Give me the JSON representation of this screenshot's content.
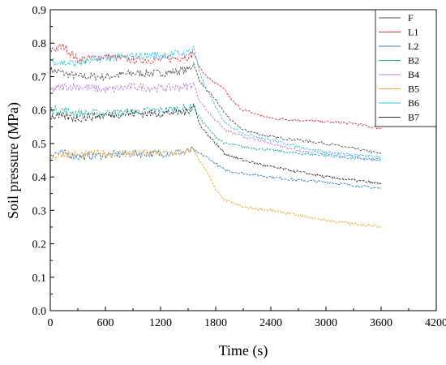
{
  "chart_data": {
    "type": "line",
    "xlabel": "Time (s)",
    "ylabel": "Soil pressure (MPa)",
    "xlim": [
      0,
      4200
    ],
    "ylim": [
      0.0,
      0.9
    ],
    "x_ticks": [
      "0",
      "600",
      "1200",
      "1800",
      "2400",
      "3000",
      "3600",
      "4200"
    ],
    "y_ticks": [
      "0.0",
      "0.1",
      "0.2",
      "0.3",
      "0.4",
      "0.5",
      "0.6",
      "0.7",
      "0.8",
      "0.9"
    ],
    "grid": false,
    "legend_position": "top-right",
    "series": [
      {
        "name": "F",
        "color": "#555555",
        "points": [
          [
            0,
            0.72
          ],
          [
            150,
            0.71
          ],
          [
            300,
            0.7
          ],
          [
            600,
            0.7
          ],
          [
            900,
            0.71
          ],
          [
            1200,
            0.71
          ],
          [
            1500,
            0.72
          ],
          [
            1560,
            0.74
          ],
          [
            1620,
            0.69
          ],
          [
            1700,
            0.66
          ],
          [
            1800,
            0.63
          ],
          [
            1900,
            0.59
          ],
          [
            2000,
            0.56
          ],
          [
            2100,
            0.54
          ],
          [
            2400,
            0.52
          ],
          [
            2700,
            0.51
          ],
          [
            3000,
            0.5
          ],
          [
            3300,
            0.485
          ],
          [
            3600,
            0.47
          ]
        ]
      },
      {
        "name": "L1",
        "color": "#e0393e",
        "points": [
          [
            0,
            0.78
          ],
          [
            150,
            0.79
          ],
          [
            300,
            0.75
          ],
          [
            600,
            0.76
          ],
          [
            900,
            0.75
          ],
          [
            1200,
            0.75
          ],
          [
            1500,
            0.76
          ],
          [
            1560,
            0.77
          ],
          [
            1620,
            0.73
          ],
          [
            1700,
            0.7
          ],
          [
            1800,
            0.68
          ],
          [
            1900,
            0.66
          ],
          [
            2000,
            0.62
          ],
          [
            2100,
            0.6
          ],
          [
            2400,
            0.575
          ],
          [
            2700,
            0.57
          ],
          [
            3000,
            0.565
          ],
          [
            3300,
            0.56
          ],
          [
            3600,
            0.545
          ]
        ]
      },
      {
        "name": "L2",
        "color": "#3a7fd4",
        "points": [
          [
            0,
            0.47
          ],
          [
            150,
            0.47
          ],
          [
            300,
            0.46
          ],
          [
            600,
            0.465
          ],
          [
            900,
            0.47
          ],
          [
            1200,
            0.47
          ],
          [
            1500,
            0.475
          ],
          [
            1560,
            0.48
          ],
          [
            1620,
            0.47
          ],
          [
            1700,
            0.46
          ],
          [
            1800,
            0.44
          ],
          [
            1900,
            0.42
          ],
          [
            2100,
            0.41
          ],
          [
            2400,
            0.4
          ],
          [
            2700,
            0.39
          ],
          [
            3000,
            0.385
          ],
          [
            3300,
            0.375
          ],
          [
            3600,
            0.365
          ]
        ]
      },
      {
        "name": "B2",
        "color": "#1ab5a5",
        "points": [
          [
            0,
            0.6
          ],
          [
            150,
            0.6
          ],
          [
            300,
            0.59
          ],
          [
            600,
            0.59
          ],
          [
            900,
            0.595
          ],
          [
            1200,
            0.6
          ],
          [
            1500,
            0.605
          ],
          [
            1560,
            0.61
          ],
          [
            1620,
            0.58
          ],
          [
            1700,
            0.55
          ],
          [
            1800,
            0.52
          ],
          [
            1900,
            0.5
          ],
          [
            2100,
            0.49
          ],
          [
            2400,
            0.48
          ],
          [
            2700,
            0.47
          ],
          [
            3000,
            0.465
          ],
          [
            3300,
            0.455
          ],
          [
            3600,
            0.45
          ]
        ]
      },
      {
        "name": "B4",
        "color": "#c77be0",
        "points": [
          [
            0,
            0.66
          ],
          [
            150,
            0.67
          ],
          [
            300,
            0.67
          ],
          [
            600,
            0.66
          ],
          [
            900,
            0.67
          ],
          [
            1200,
            0.665
          ],
          [
            1500,
            0.67
          ],
          [
            1560,
            0.68
          ],
          [
            1620,
            0.63
          ],
          [
            1700,
            0.6
          ],
          [
            1800,
            0.57
          ],
          [
            1900,
            0.54
          ],
          [
            2100,
            0.52
          ],
          [
            2400,
            0.5
          ],
          [
            2700,
            0.48
          ],
          [
            3000,
            0.47
          ],
          [
            3300,
            0.46
          ],
          [
            3600,
            0.45
          ]
        ]
      },
      {
        "name": "B5",
        "color": "#f0a830",
        "points": [
          [
            0,
            0.46
          ],
          [
            150,
            0.47
          ],
          [
            300,
            0.465
          ],
          [
            600,
            0.47
          ],
          [
            900,
            0.47
          ],
          [
            1200,
            0.47
          ],
          [
            1500,
            0.475
          ],
          [
            1560,
            0.48
          ],
          [
            1620,
            0.45
          ],
          [
            1700,
            0.42
          ],
          [
            1800,
            0.36
          ],
          [
            1900,
            0.33
          ],
          [
            2100,
            0.31
          ],
          [
            2400,
            0.3
          ],
          [
            2700,
            0.285
          ],
          [
            3000,
            0.27
          ],
          [
            3300,
            0.26
          ],
          [
            3600,
            0.25
          ]
        ]
      },
      {
        "name": "B6",
        "color": "#2ac7e8",
        "points": [
          [
            0,
            0.75
          ],
          [
            150,
            0.74
          ],
          [
            300,
            0.74
          ],
          [
            600,
            0.755
          ],
          [
            900,
            0.76
          ],
          [
            1200,
            0.765
          ],
          [
            1500,
            0.77
          ],
          [
            1560,
            0.79
          ],
          [
            1620,
            0.72
          ],
          [
            1700,
            0.66
          ],
          [
            1800,
            0.61
          ],
          [
            1900,
            0.56
          ],
          [
            2100,
            0.53
          ],
          [
            2400,
            0.51
          ],
          [
            2700,
            0.49
          ],
          [
            3000,
            0.475
          ],
          [
            3300,
            0.465
          ],
          [
            3600,
            0.46
          ]
        ]
      },
      {
        "name": "B7",
        "color": "#333333",
        "points": [
          [
            0,
            0.58
          ],
          [
            150,
            0.58
          ],
          [
            300,
            0.575
          ],
          [
            600,
            0.585
          ],
          [
            900,
            0.59
          ],
          [
            1200,
            0.59
          ],
          [
            1500,
            0.595
          ],
          [
            1560,
            0.62
          ],
          [
            1620,
            0.56
          ],
          [
            1700,
            0.53
          ],
          [
            1800,
            0.5
          ],
          [
            1900,
            0.47
          ],
          [
            2100,
            0.45
          ],
          [
            2400,
            0.43
          ],
          [
            2700,
            0.415
          ],
          [
            3000,
            0.4
          ],
          [
            3300,
            0.39
          ],
          [
            3600,
            0.38
          ]
        ]
      }
    ]
  }
}
